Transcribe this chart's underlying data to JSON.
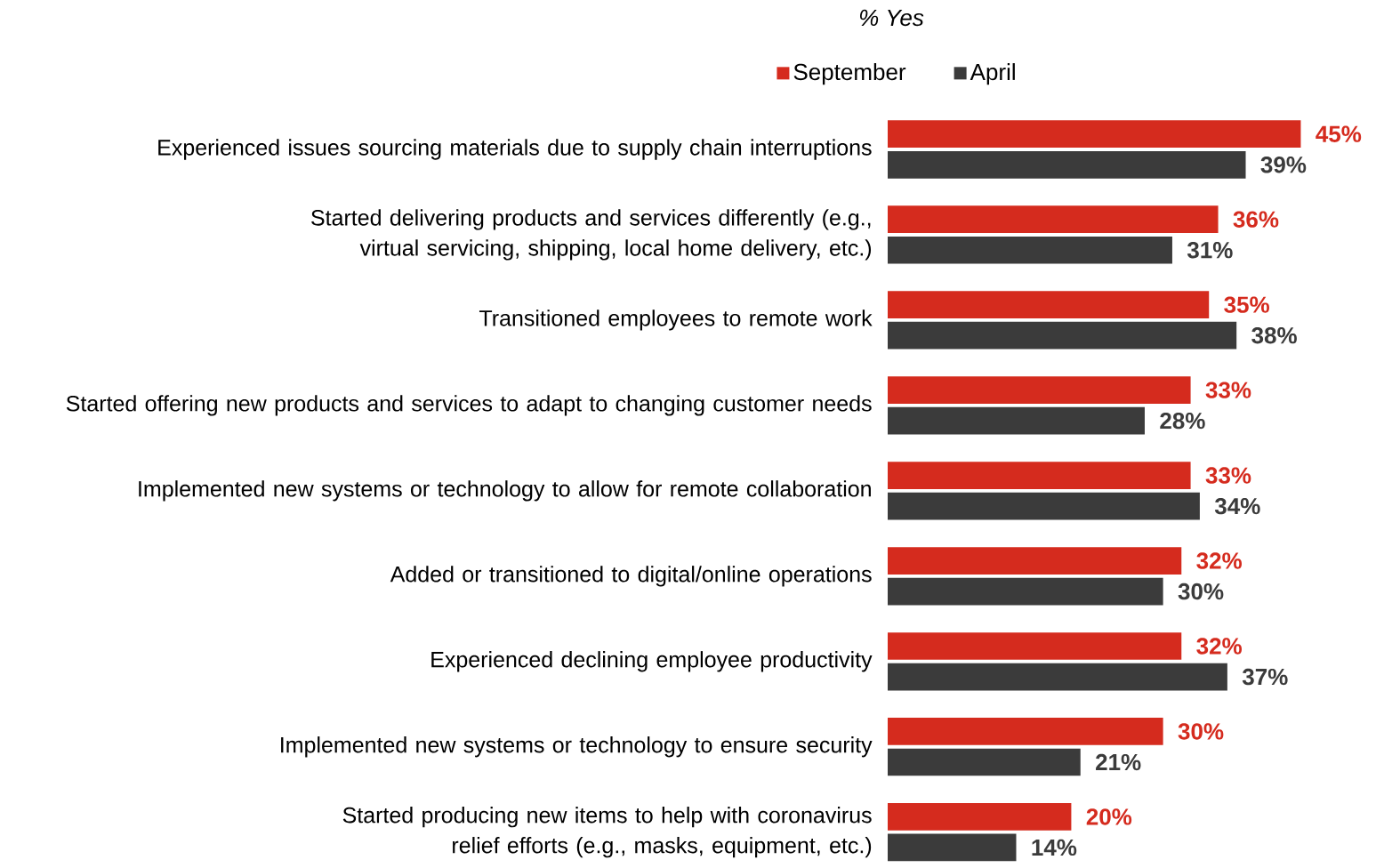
{
  "chart_data": {
    "type": "bar",
    "orientation": "horizontal",
    "title": "% Yes",
    "legend": "top",
    "categories": [
      "Experienced issues sourcing materials due to supply chain interruptions",
      "Started delivering products and services differently (e.g., virtual servicing, shipping, local home delivery, etc.)",
      "Transitioned employees to remote work",
      "Started offering new products and services to adapt to changing customer needs",
      "Implemented new systems or technology to allow for remote collaboration",
      "Added or transitioned to digital/online operations",
      "Experienced declining employee productivity",
      "Implemented new systems or technology to ensure security",
      "Started producing new items to help with coronavirus relief efforts (e.g., masks, equipment, etc.)"
    ],
    "series": [
      {
        "name": "September",
        "color": "#d52b1e",
        "values": [
          45,
          36,
          35,
          33,
          33,
          32,
          32,
          30,
          20
        ],
        "value_labels": [
          "45%",
          "36%",
          "35%",
          "33%",
          "33%",
          "32%",
          "32%",
          "30%",
          "20%"
        ]
      },
      {
        "name": "April",
        "color": "#3b3b3b",
        "values": [
          39,
          31,
          38,
          28,
          34,
          30,
          37,
          21,
          14
        ],
        "value_labels": [
          "39%",
          "31%",
          "38%",
          "28%",
          "34%",
          "30%",
          "37%",
          "21%",
          "14%"
        ]
      }
    ]
  }
}
